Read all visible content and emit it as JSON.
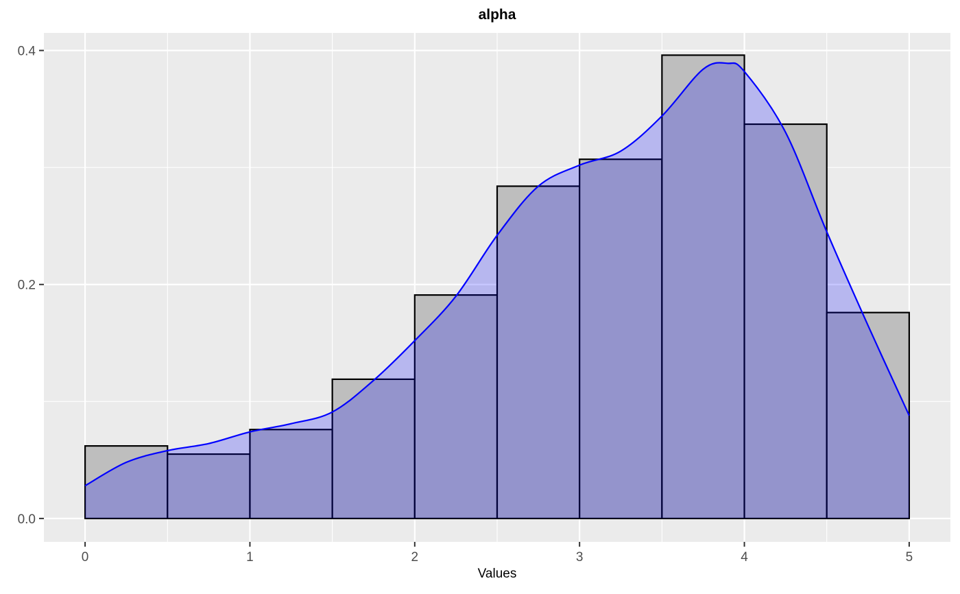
{
  "chart_data": {
    "type": "bar",
    "title": "alpha",
    "xlabel": "Values",
    "ylabel": "",
    "xlim": [
      -0.25,
      5.25
    ],
    "ylim": [
      -0.02,
      0.415
    ],
    "x_ticks": [
      0,
      1,
      2,
      3,
      4,
      5
    ],
    "x_tick_labels": [
      "0",
      "1",
      "2",
      "3",
      "4",
      "5"
    ],
    "y_ticks": [
      0.0,
      0.2,
      0.4
    ],
    "y_tick_labels": [
      "0.0",
      "0.2",
      "0.4"
    ],
    "grid": true,
    "histogram": {
      "bin_edges": [
        0,
        0.5,
        1,
        1.5,
        2,
        2.5,
        3,
        3.5,
        4,
        4.5,
        5
      ],
      "values": [
        0.062,
        0.055,
        0.076,
        0.119,
        0.191,
        0.284,
        0.307,
        0.396,
        0.337,
        0.176
      ]
    },
    "density": {
      "x": [
        0,
        0.25,
        0.5,
        0.75,
        1.0,
        1.25,
        1.5,
        1.75,
        2.0,
        2.25,
        2.5,
        2.75,
        3.0,
        3.25,
        3.5,
        3.75,
        3.9,
        4.0,
        4.25,
        4.5,
        4.75,
        5.0
      ],
      "y": [
        0.028,
        0.048,
        0.058,
        0.064,
        0.074,
        0.081,
        0.091,
        0.118,
        0.152,
        0.19,
        0.242,
        0.284,
        0.302,
        0.314,
        0.344,
        0.384,
        0.389,
        0.382,
        0.33,
        0.245,
        0.165,
        0.088
      ]
    }
  },
  "colors": {
    "panel_background": "#ebebeb",
    "grid": "#ffffff",
    "bar_fill": "#bebebe",
    "bar_stroke": "#000000",
    "density_line": "#0000ff",
    "density_fill": "rgba(0,0,255,0.22)",
    "axis_text": "#4d4d4d"
  }
}
